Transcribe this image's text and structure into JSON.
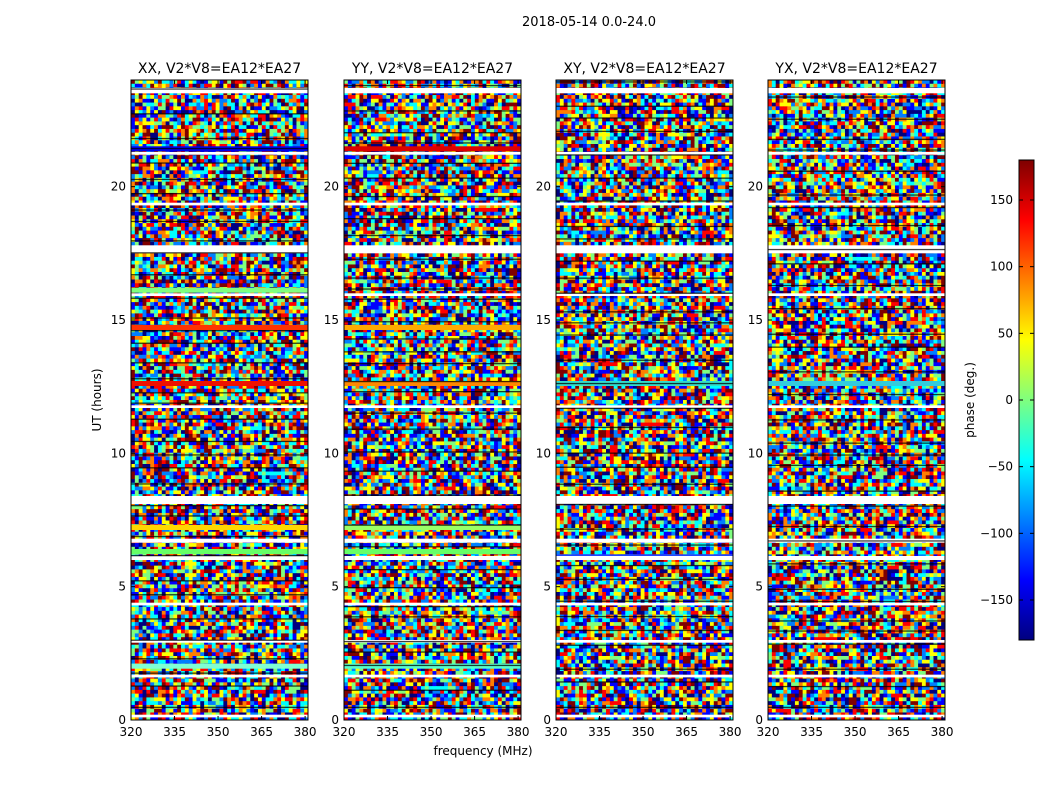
{
  "suptitle": "2018-05-14 0.0-24.0",
  "colorbar": {
    "label": "phase (deg.)",
    "ticks": [
      150,
      100,
      50,
      0,
      -50,
      -100,
      -150
    ],
    "tick_labels": [
      "150",
      "100",
      "50",
      "0",
      "−50",
      "−100",
      "−150"
    ],
    "range": [
      -180,
      180
    ],
    "colormap": "jet",
    "colormap_stops": [
      "#00007f",
      "#0000ff",
      "#007fff",
      "#00ffff",
      "#7fff7f",
      "#ffff00",
      "#ff7f00",
      "#ff0000",
      "#7f0000"
    ]
  },
  "chart_data": {
    "type": "heatmap",
    "xlabel": "frequency (MHz)",
    "ylabel": "UT (hours)",
    "xlim": [
      320,
      381
    ],
    "ylim": [
      0,
      24
    ],
    "xticks": [
      320,
      335,
      350,
      365,
      380
    ],
    "xtick_labels": [
      "320",
      "335",
      "350",
      "365",
      "380"
    ],
    "yticks": [
      0,
      5,
      10,
      15,
      20
    ],
    "ytick_labels": [
      "0",
      "5",
      "10",
      "15",
      "20"
    ],
    "value": "phase (deg.)",
    "panels": [
      {
        "title": "XX, V2*V8=EA12*EA27",
        "flagged_hours": [
          [
            0.1,
            0.2
          ],
          [
            1.6,
            1.7
          ],
          [
            2.9,
            3.0
          ],
          [
            4.3,
            4.4
          ],
          [
            6.0,
            6.15
          ],
          [
            6.65,
            6.8
          ],
          [
            8.1,
            8.4
          ],
          [
            11.7,
            11.8
          ],
          [
            15.9,
            16.0
          ],
          [
            17.5,
            17.8
          ],
          [
            19.3,
            19.4
          ],
          [
            21.2,
            21.3
          ],
          [
            23.5,
            23.7
          ]
        ],
        "features": [
          {
            "hour": 2.0,
            "label": "cyan band",
            "color": "#7fffd4"
          },
          {
            "hour": 6.3,
            "label": "green band",
            "color": "#66ff66"
          },
          {
            "hour": 7.2,
            "label": "yellow band",
            "color": "#ffd700"
          },
          {
            "hour": 12.6,
            "label": "red band",
            "color": "#ee1100"
          },
          {
            "hour": 14.7,
            "label": "red band",
            "color": "#ff3300"
          },
          {
            "hour": 16.1,
            "label": "green band",
            "color": "#7fff7f"
          },
          {
            "hour": 21.4,
            "label": "blue band",
            "color": "#0000ee"
          }
        ]
      },
      {
        "title": "YY, V2*V8=EA12*EA27",
        "flagged_hours": [
          [
            0.1,
            0.2
          ],
          [
            1.6,
            1.7
          ],
          [
            2.9,
            3.0
          ],
          [
            4.3,
            4.4
          ],
          [
            6.0,
            6.15
          ],
          [
            6.65,
            6.8
          ],
          [
            8.1,
            8.4
          ],
          [
            11.7,
            11.8
          ],
          [
            15.9,
            16.0
          ],
          [
            17.5,
            17.8
          ],
          [
            19.3,
            19.4
          ],
          [
            21.2,
            21.3
          ],
          [
            23.5,
            23.7
          ]
        ],
        "features": [
          {
            "hour": 2.0,
            "label": "cyan band",
            "color": "#55ffcc"
          },
          {
            "hour": 6.3,
            "label": "green band",
            "color": "#66ff66"
          },
          {
            "hour": 7.2,
            "label": "green band",
            "color": "#99ff66"
          },
          {
            "hour": 12.6,
            "label": "orange band",
            "color": "#ff8800"
          },
          {
            "hour": 14.7,
            "label": "orange band",
            "color": "#ffaa00"
          },
          {
            "hour": 21.4,
            "label": "red band",
            "color": "#dd0000"
          }
        ]
      },
      {
        "title": "XY, V2*V8=EA12*EA27",
        "flagged_hours": [
          [
            0.1,
            0.2
          ],
          [
            1.6,
            1.7
          ],
          [
            2.9,
            3.0
          ],
          [
            4.3,
            4.4
          ],
          [
            6.0,
            6.15
          ],
          [
            6.65,
            6.8
          ],
          [
            8.1,
            8.4
          ],
          [
            11.7,
            11.8
          ],
          [
            15.9,
            16.0
          ],
          [
            17.5,
            17.8
          ],
          [
            19.3,
            19.4
          ],
          [
            21.2,
            21.3
          ],
          [
            23.5,
            23.7
          ]
        ],
        "features": [
          {
            "hour": 6.1,
            "label": "blue band",
            "color": "#2244ff"
          },
          {
            "hour": 12.6,
            "label": "cyan band",
            "color": "#33ddcc"
          }
        ]
      },
      {
        "title": "YX, V2*V8=EA12*EA27",
        "flagged_hours": [
          [
            0.1,
            0.2
          ],
          [
            1.6,
            1.7
          ],
          [
            2.9,
            3.0
          ],
          [
            4.3,
            4.4
          ],
          [
            6.0,
            6.15
          ],
          [
            6.65,
            6.8
          ],
          [
            8.1,
            8.4
          ],
          [
            11.7,
            11.8
          ],
          [
            15.9,
            16.0
          ],
          [
            17.5,
            17.8
          ],
          [
            19.3,
            19.4
          ],
          [
            21.2,
            21.3
          ],
          [
            23.5,
            23.7
          ]
        ],
        "features": [
          {
            "hour": 12.6,
            "label": "cyan band",
            "color": "#33ccdd"
          }
        ]
      }
    ]
  }
}
